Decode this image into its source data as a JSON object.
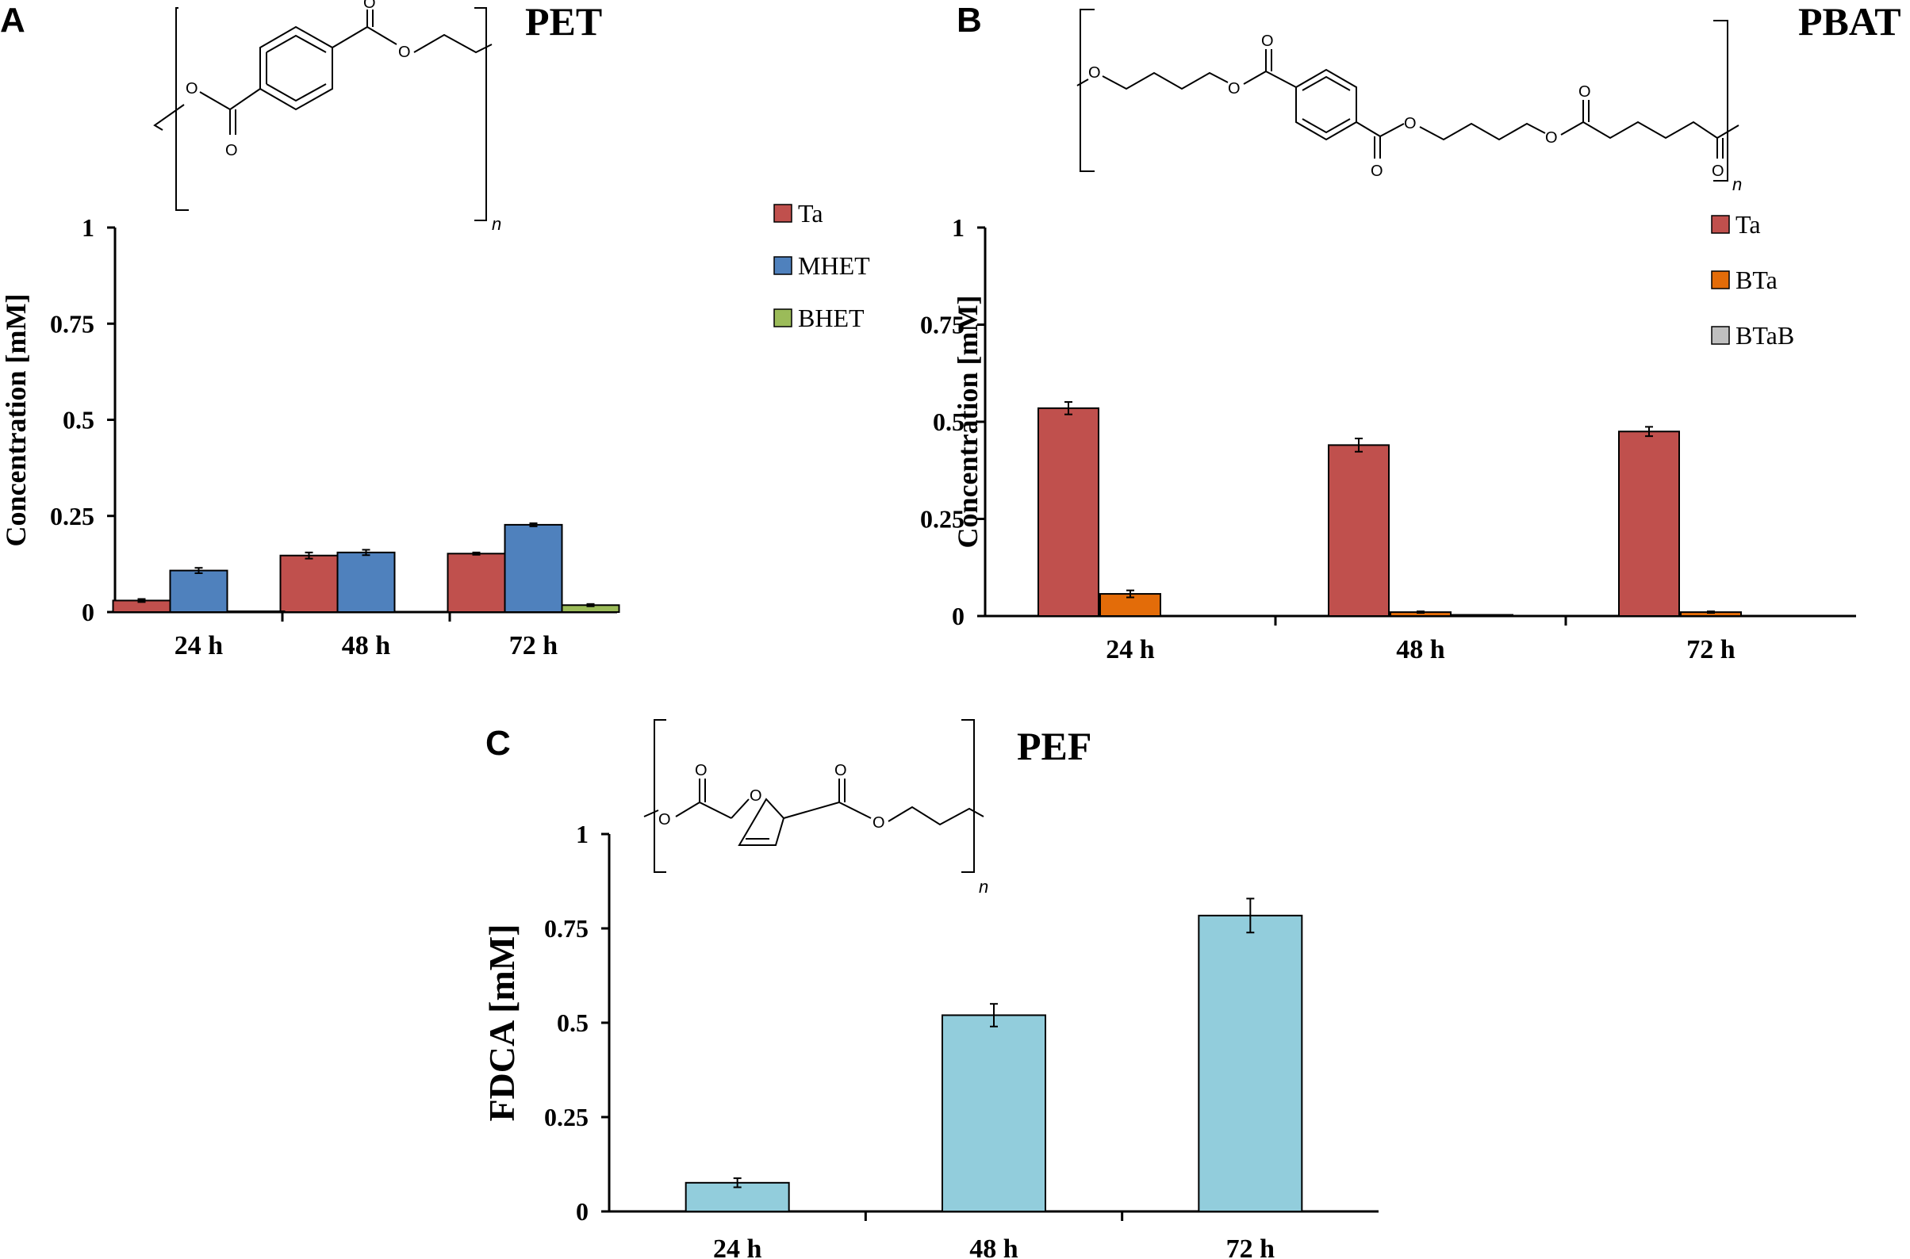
{
  "panels": {
    "A": {
      "letter": "A",
      "polymer": "PET",
      "n_label": "n"
    },
    "B": {
      "letter": "B",
      "polymer": "PBAT",
      "n_label": "n"
    },
    "C": {
      "letter": "C",
      "polymer": "PEF",
      "n_label": "n"
    }
  },
  "chem_labels": {
    "oxygen": "O"
  },
  "chart_data": [
    {
      "id": "A",
      "type": "bar",
      "title": "PET",
      "xlabel": "",
      "ylabel": "Concentration  [mM]",
      "ylim": [
        0,
        1
      ],
      "yticks": [
        0,
        0.25,
        0.5,
        0.75,
        1
      ],
      "ytick_labels": [
        "0",
        "0.25",
        "0.5",
        "0.75",
        "1"
      ],
      "categories": [
        "24 h",
        "48 h",
        "72 h"
      ],
      "legend_position": "top-right",
      "series": [
        {
          "name": "Ta",
          "color": "#c0504d",
          "values": [
            0.03,
            0.147,
            0.152
          ],
          "errors": [
            0.004,
            0.008,
            0.003
          ]
        },
        {
          "name": "MHET",
          "color": "#4f81bd",
          "values": [
            0.108,
            0.155,
            0.227
          ],
          "errors": [
            0.007,
            0.007,
            0.004
          ]
        },
        {
          "name": "BHET",
          "color": "#9bbb59",
          "values": [
            0.002,
            0,
            0.018
          ],
          "errors": [
            0,
            0,
            0.003
          ]
        }
      ]
    },
    {
      "id": "B",
      "type": "bar",
      "title": "PBAT",
      "xlabel": "",
      "ylabel": "Concentration  [mM]",
      "ylim": [
        0,
        1
      ],
      "yticks": [
        0,
        0.25,
        0.5,
        0.75,
        1
      ],
      "ytick_labels": [
        "0",
        "0.25",
        "0.5",
        "0.75",
        "1"
      ],
      "categories": [
        "24 h",
        "48 h",
        "72 h"
      ],
      "legend_position": "top-right",
      "series": [
        {
          "name": "Ta",
          "color": "#c0504d",
          "values": [
            0.535,
            0.44,
            0.475
          ],
          "errors": [
            0.016,
            0.017,
            0.012
          ]
        },
        {
          "name": "BTa",
          "color": "#e36c09",
          "values": [
            0.057,
            0.01,
            0.01
          ],
          "errors": [
            0.009,
            0.002,
            0.002
          ]
        },
        {
          "name": "BTaB",
          "color": "#bfbfbf",
          "values": [
            0,
            0.003,
            0
          ],
          "errors": [
            0,
            0,
            0
          ]
        }
      ]
    },
    {
      "id": "C",
      "type": "bar",
      "title": "PEF",
      "xlabel": "",
      "ylabel": "FDCA [mM]",
      "ylim": [
        0,
        1
      ],
      "yticks": [
        0,
        0.25,
        0.5,
        0.75,
        1
      ],
      "ytick_labels": [
        "0",
        "0.25",
        "0.5",
        "0.75",
        "1"
      ],
      "categories": [
        "24 h",
        "48 h",
        "72 h"
      ],
      "series": [
        {
          "name": "FDCA",
          "color": "#92cddc",
          "values": [
            0.076,
            0.52,
            0.784
          ],
          "errors": [
            0.012,
            0.03,
            0.045
          ]
        }
      ]
    }
  ]
}
